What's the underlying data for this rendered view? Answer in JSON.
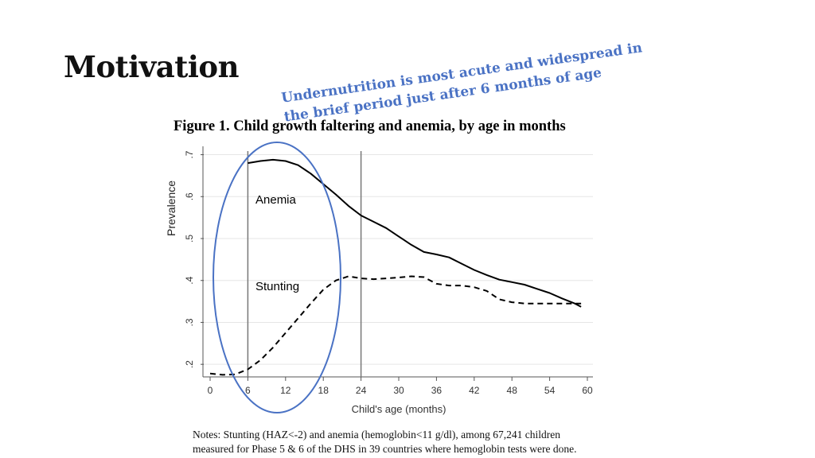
{
  "slide": {
    "title": "Motivation",
    "callout": [
      "Undernutrition is most acute and widespread in",
      "the brief period just after 6 months of age"
    ],
    "figure_title": "Figure 1. Child growth faltering and anemia, by age in months",
    "notes": [
      "Notes: Stunting (HAZ<-2) and anemia (hemoglobin<11 g/dl), among 67,241 children",
      "measured for Phase 5 & 6 of the DHS in 39 countries where hemoglobin tests were done."
    ]
  },
  "colors": {
    "callout": "#4a72c4",
    "circle": "#4a72c4",
    "lines": "#000000"
  },
  "chart_data": {
    "type": "line",
    "title": "",
    "xlabel": "Child's age (months)",
    "ylabel": "Prevalence",
    "xlim": [
      0,
      60
    ],
    "ylim": [
      0.17,
      0.72
    ],
    "xticks": [
      0,
      6,
      12,
      18,
      24,
      30,
      36,
      42,
      48,
      54,
      60
    ],
    "xtick_labels": [
      "0",
      "6",
      "12",
      "18",
      "24",
      "30",
      "36",
      "42",
      "48",
      "54",
      "60"
    ],
    "yticks": [
      0.2,
      0.3,
      0.4,
      0.5,
      0.6,
      0.7
    ],
    "ytick_labels": [
      ".2",
      ".3",
      ".4",
      ".5",
      ".6",
      ".7"
    ],
    "grid": true,
    "vlines": [
      6,
      24
    ],
    "annotations": [
      "Anemia",
      "Stunting"
    ],
    "series": [
      {
        "name": "Anemia",
        "style": "solid",
        "x": [
          6,
          8,
          10,
          12,
          14,
          16,
          18,
          20,
          22,
          24,
          26,
          28,
          30,
          32,
          34,
          36,
          38,
          40,
          42,
          44,
          46,
          48,
          50,
          52,
          54,
          56,
          58,
          59
        ],
        "values": [
          0.68,
          0.685,
          0.688,
          0.685,
          0.675,
          0.655,
          0.63,
          0.605,
          0.578,
          0.555,
          0.54,
          0.525,
          0.505,
          0.485,
          0.468,
          0.462,
          0.455,
          0.44,
          0.425,
          0.413,
          0.402,
          0.396,
          0.39,
          0.38,
          0.37,
          0.357,
          0.345,
          0.337
        ]
      },
      {
        "name": "Stunting",
        "style": "dashed",
        "x": [
          0,
          2,
          4,
          6,
          8,
          10,
          12,
          14,
          16,
          18,
          20,
          22,
          24,
          26,
          28,
          30,
          32,
          34,
          36,
          38,
          40,
          42,
          44,
          46,
          48,
          50,
          52,
          54,
          56,
          58,
          59
        ],
        "values": [
          0.178,
          0.175,
          0.176,
          0.188,
          0.21,
          0.24,
          0.275,
          0.31,
          0.345,
          0.378,
          0.4,
          0.41,
          0.405,
          0.403,
          0.405,
          0.407,
          0.41,
          0.408,
          0.392,
          0.388,
          0.388,
          0.384,
          0.375,
          0.355,
          0.348,
          0.345,
          0.345,
          0.345,
          0.345,
          0.345,
          0.345
        ]
      }
    ]
  }
}
